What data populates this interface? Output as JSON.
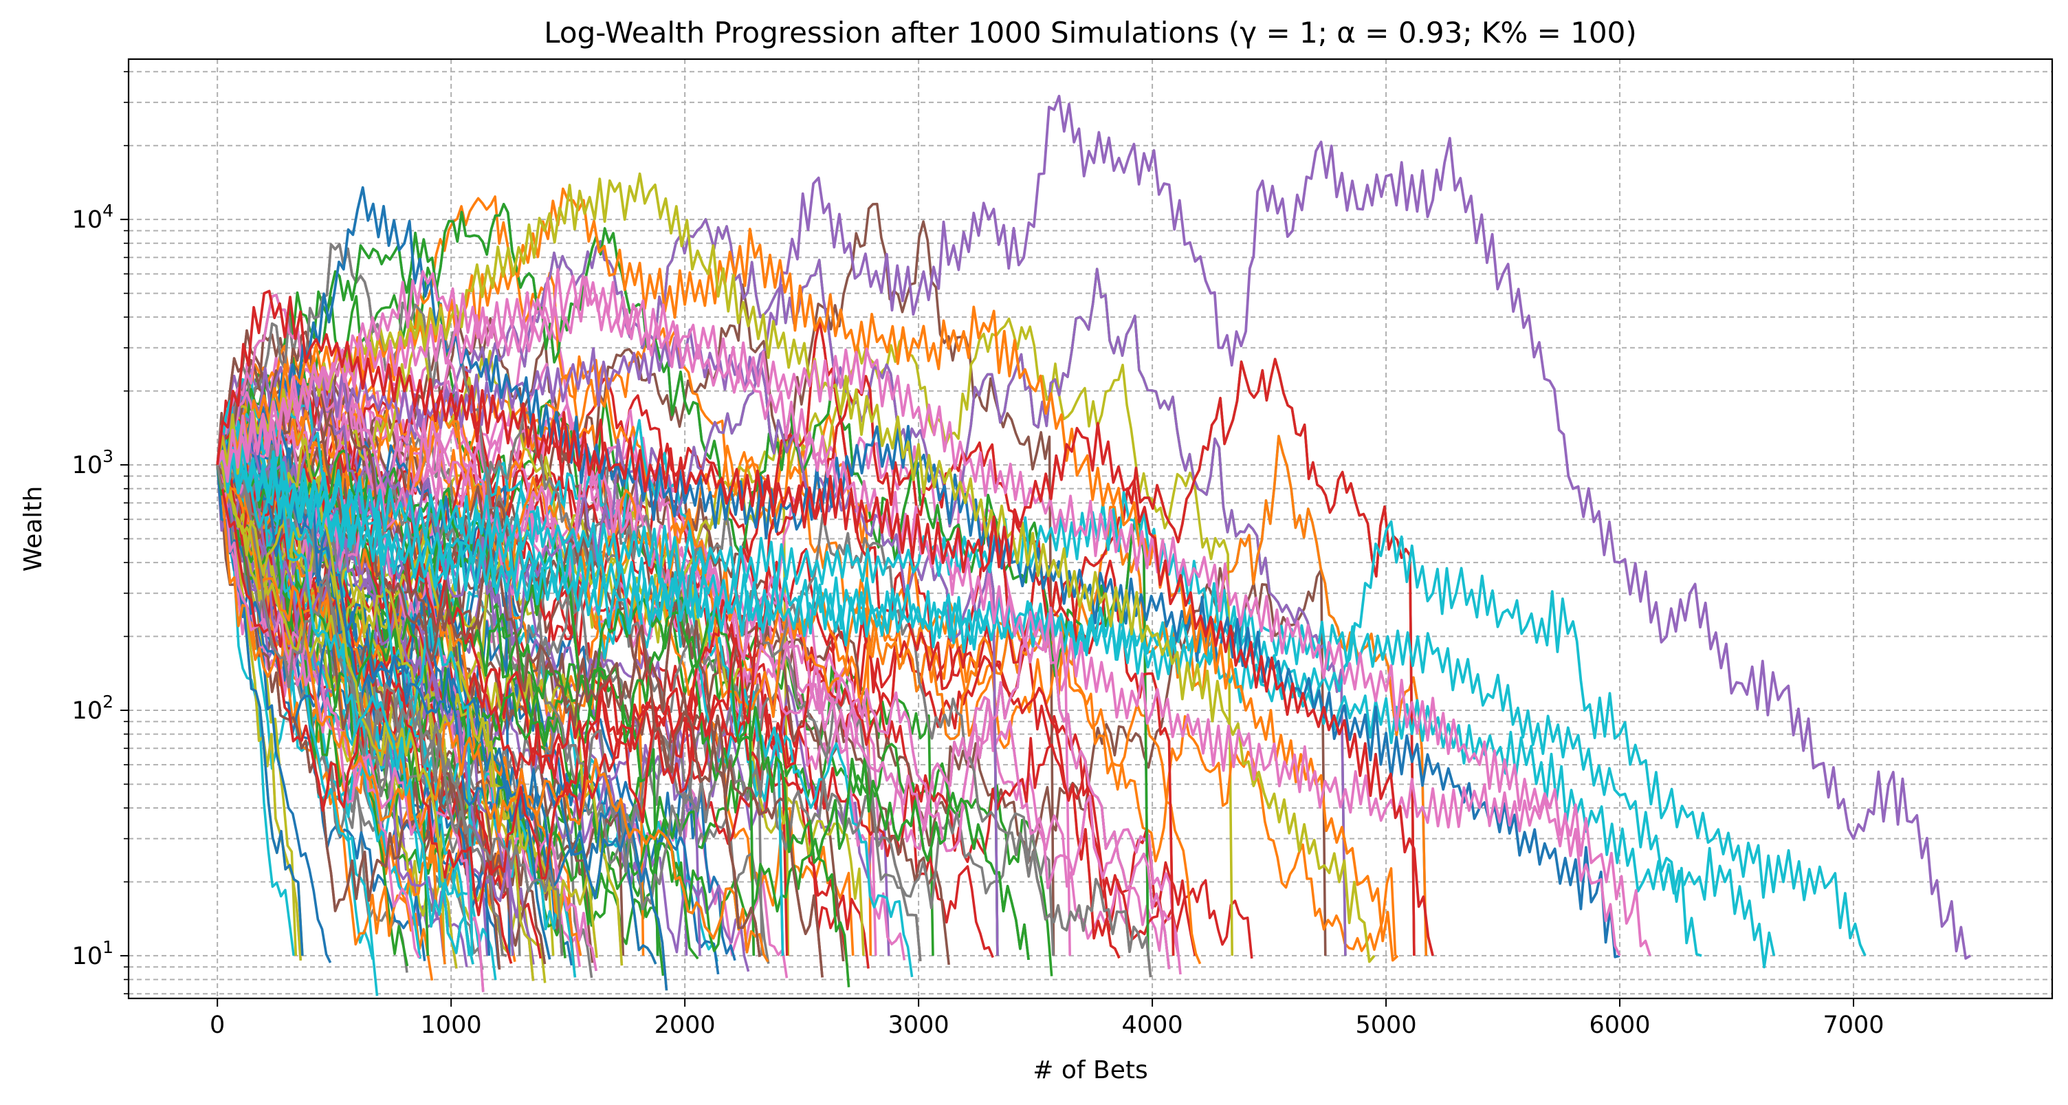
{
  "chart_data": {
    "type": "line",
    "title": "Log-Wealth Progression after 1000 Simulations (γ = 1; α = 0.93; K% = 100)",
    "xlabel": "# of Bets",
    "ylabel": "Wealth",
    "yscale": "log",
    "xlim": [
      -380,
      7850
    ],
    "ylim": [
      6.7,
      45000
    ],
    "x_ticks": [
      0,
      1000,
      2000,
      3000,
      4000,
      5000,
      6000,
      7000
    ],
    "x_tick_labels": [
      "0",
      "1000",
      "2000",
      "3000",
      "4000",
      "5000",
      "6000",
      "7000"
    ],
    "y_ticks": [
      10,
      100,
      1000,
      10000
    ],
    "y_tick_labels": [
      {
        "base": "10",
        "exp": "1"
      },
      {
        "base": "10",
        "exp": "2"
      },
      {
        "base": "10",
        "exp": "3"
      },
      {
        "base": "10",
        "exp": "4"
      }
    ],
    "grid": true,
    "grid_style": "dashed",
    "start_wealth": 1000,
    "ruin_floor": 10,
    "palette": [
      "#1f77b4",
      "#ff7f0e",
      "#2ca02c",
      "#d62728",
      "#9467bd",
      "#8c564b",
      "#e377c2",
      "#7f7f7f",
      "#bcbd22",
      "#17becf"
    ],
    "notable_paths": [
      {
        "color": "#9467bd",
        "points": [
          [
            0,
            1000
          ],
          [
            250,
            2200
          ],
          [
            600,
            1800
          ],
          [
            1000,
            1600
          ],
          [
            1500,
            2200
          ],
          [
            2000,
            2800
          ],
          [
            2300,
            2200
          ],
          [
            2550,
            14000
          ],
          [
            2750,
            6000
          ],
          [
            3000,
            5000
          ],
          [
            3300,
            10000
          ],
          [
            3450,
            7000
          ],
          [
            3580,
            28000
          ],
          [
            3750,
            17000
          ],
          [
            3900,
            18000
          ],
          [
            4050,
            14000
          ],
          [
            4250,
            5000
          ],
          [
            4300,
            3000
          ],
          [
            4400,
            3500
          ],
          [
            4450,
            13000
          ],
          [
            4600,
            9000
          ],
          [
            4700,
            19000
          ],
          [
            4900,
            11000
          ],
          [
            5000,
            15000
          ],
          [
            5200,
            12000
          ],
          [
            5250,
            17000
          ],
          [
            5500,
            6000
          ],
          [
            5700,
            2200
          ],
          [
            5800,
            800
          ],
          [
            6000,
            400
          ],
          [
            6200,
            200
          ],
          [
            6300,
            300
          ],
          [
            6500,
            130
          ],
          [
            6700,
            120
          ],
          [
            6850,
            60
          ],
          [
            7000,
            30
          ],
          [
            7150,
            50
          ],
          [
            7250,
            35
          ],
          [
            7400,
            14
          ],
          [
            7500,
            10
          ]
        ]
      },
      {
        "color": "#17becf",
        "points": [
          [
            0,
            1000
          ],
          [
            500,
            700
          ],
          [
            1000,
            600
          ],
          [
            1500,
            500
          ],
          [
            2000,
            420
          ],
          [
            2500,
            380
          ],
          [
            3000,
            400
          ],
          [
            3500,
            450
          ],
          [
            3900,
            600
          ],
          [
            4200,
            300
          ],
          [
            4500,
            150
          ],
          [
            4800,
            120
          ],
          [
            5000,
            540
          ],
          [
            5200,
            300
          ],
          [
            5300,
            300
          ],
          [
            5500,
            250
          ],
          [
            5600,
            220
          ],
          [
            5800,
            230
          ],
          [
            5850,
            100
          ],
          [
            6000,
            80
          ],
          [
            6200,
            40
          ],
          [
            6400,
            30
          ],
          [
            6700,
            20
          ],
          [
            6900,
            20
          ],
          [
            7050,
            10
          ]
        ]
      },
      {
        "color": "#17becf",
        "points": [
          [
            0,
            1000
          ],
          [
            800,
            400
          ],
          [
            1500,
            300
          ],
          [
            2200,
            250
          ],
          [
            3000,
            230
          ],
          [
            3800,
            200
          ],
          [
            4400,
            200
          ],
          [
            4900,
            180
          ],
          [
            5200,
            170
          ],
          [
            5500,
            100
          ],
          [
            5800,
            70
          ],
          [
            6000,
            45
          ],
          [
            6200,
            25
          ],
          [
            6350,
            10
          ]
        ]
      },
      {
        "color": "#17becf",
        "points": [
          [
            0,
            1000
          ],
          [
            700,
            500
          ],
          [
            1400,
            380
          ],
          [
            2100,
            300
          ],
          [
            2800,
            250
          ],
          [
            3500,
            220
          ],
          [
            4200,
            150
          ],
          [
            4800,
            100
          ],
          [
            5200,
            80
          ],
          [
            5600,
            60
          ],
          [
            5900,
            35
          ],
          [
            6100,
            20
          ],
          [
            6450,
            20
          ],
          [
            6660,
            10
          ]
        ]
      },
      {
        "color": "#1f77b4",
        "points": [
          [
            0,
            1000
          ],
          [
            300,
            2000
          ],
          [
            500,
            5000
          ],
          [
            600,
            11000
          ],
          [
            800,
            8000
          ],
          [
            1000,
            3000
          ],
          [
            1300,
            1800
          ],
          [
            1600,
            1000
          ],
          [
            2000,
            700
          ],
          [
            2500,
            600
          ],
          [
            2800,
            1200
          ],
          [
            3000,
            1000
          ],
          [
            3400,
            400
          ],
          [
            3800,
            300
          ],
          [
            4300,
            200
          ],
          [
            4800,
            90
          ],
          [
            5200,
            55
          ],
          [
            5400,
            40
          ],
          [
            5700,
            25
          ],
          [
            5900,
            18
          ],
          [
            6000,
            10
          ]
        ]
      },
      {
        "color": "#ff7f0e",
        "points": [
          [
            0,
            1000
          ],
          [
            400,
            2400
          ],
          [
            800,
            3000
          ],
          [
            1200,
            5000
          ],
          [
            1500,
            12000
          ],
          [
            1700,
            6000
          ],
          [
            2000,
            4500
          ],
          [
            2300,
            7000
          ],
          [
            2600,
            3500
          ],
          [
            3000,
            3000
          ],
          [
            3300,
            3500
          ],
          [
            3500,
            2000
          ],
          [
            3700,
            1000
          ],
          [
            3900,
            600
          ],
          [
            4100,
            300
          ],
          [
            4400,
            100
          ],
          [
            4700,
            50
          ],
          [
            4900,
            20
          ],
          [
            5050,
            10
          ]
        ]
      },
      {
        "color": "#bcbd22",
        "points": [
          [
            0,
            1000
          ],
          [
            500,
            2500
          ],
          [
            1000,
            4000
          ],
          [
            1400,
            9000
          ],
          [
            1700,
            13000
          ],
          [
            1850,
            13000
          ],
          [
            2100,
            6000
          ],
          [
            2400,
            3000
          ],
          [
            2800,
            1500
          ],
          [
            3200,
            700
          ],
          [
            3600,
            350
          ],
          [
            4000,
            200
          ],
          [
            4300,
            100
          ],
          [
            4500,
            40
          ],
          [
            4800,
            20
          ],
          [
            4950,
            10
          ]
        ]
      },
      {
        "color": "#e377c2",
        "points": [
          [
            0,
            1000
          ],
          [
            500,
            2500
          ],
          [
            1000,
            3000
          ],
          [
            1500,
            5000
          ],
          [
            1800,
            4000
          ],
          [
            2100,
            3000
          ],
          [
            2400,
            2000
          ],
          [
            2800,
            2500
          ],
          [
            3200,
            1000
          ],
          [
            3500,
            700
          ],
          [
            3800,
            500
          ],
          [
            4200,
            350
          ],
          [
            4600,
            200
          ],
          [
            5000,
            120
          ],
          [
            5400,
            60
          ],
          [
            5700,
            40
          ],
          [
            5900,
            25
          ],
          [
            6050,
            15
          ],
          [
            6130,
            10
          ]
        ]
      },
      {
        "color": "#e377c2",
        "points": [
          [
            0,
            1000
          ],
          [
            300,
            1500
          ],
          [
            600,
            3000
          ],
          [
            900,
            5500
          ],
          [
            1200,
            3000
          ],
          [
            1600,
            4500
          ],
          [
            1900,
            3000
          ],
          [
            2300,
            2000
          ],
          [
            2700,
            800
          ],
          [
            3100,
            400
          ],
          [
            3500,
            200
          ],
          [
            4000,
            100
          ],
          [
            4500,
            60
          ],
          [
            5000,
            40
          ],
          [
            5400,
            40
          ],
          [
            5700,
            35
          ],
          [
            5900,
            20
          ],
          [
            6000,
            10
          ]
        ]
      },
      {
        "color": "#d62728",
        "points": [
          [
            0,
            1000
          ],
          [
            200,
            5000
          ],
          [
            400,
            3000
          ],
          [
            800,
            2000
          ],
          [
            1200,
            1500
          ],
          [
            1700,
            1000
          ],
          [
            2200,
            800
          ],
          [
            2800,
            600
          ],
          [
            3300,
            400
          ],
          [
            3700,
            1300
          ],
          [
            3900,
            800
          ],
          [
            4100,
            300
          ],
          [
            4400,
            150
          ],
          [
            4800,
            80
          ],
          [
            5000,
            50
          ],
          [
            5100,
            30
          ],
          [
            5200,
            10
          ]
        ]
      }
    ]
  }
}
